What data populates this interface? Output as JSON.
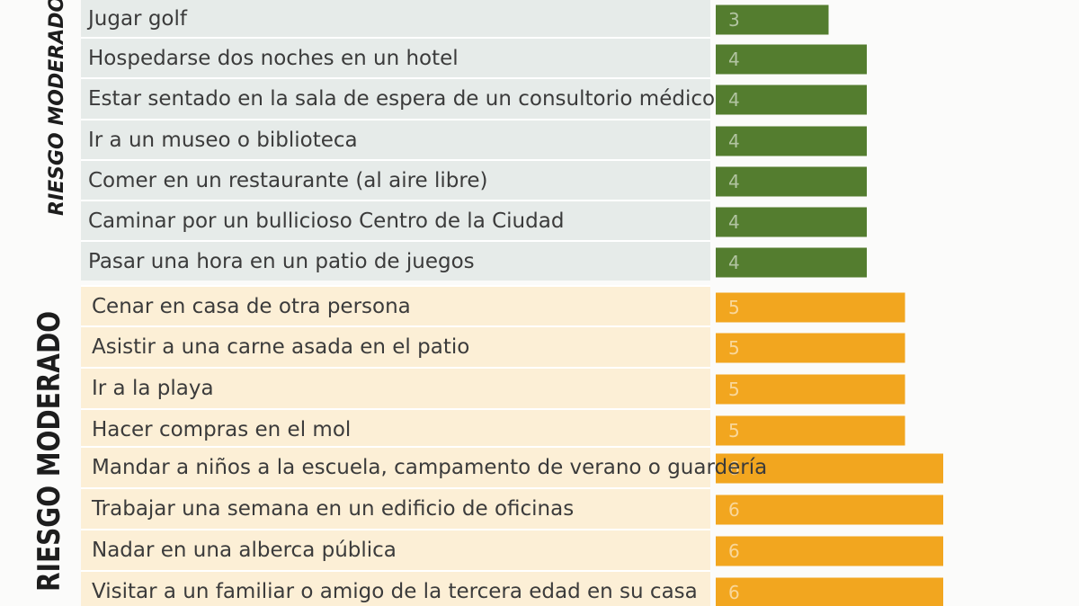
{
  "chart_data": {
    "type": "bar",
    "orientation": "horizontal",
    "grid": false,
    "sections": [
      {
        "label": "RIESGO MODERADO-BA",
        "color": "#547d2f",
        "background": "#e6ebe9",
        "label_style": "italic"
      },
      {
        "label": "RIESGO MODERADO",
        "color": "#f2a61f",
        "background": "#fcefd6",
        "label_style": "bold"
      }
    ],
    "items": [
      {
        "activity": "Jugar golf",
        "value": 3,
        "section": 0
      },
      {
        "activity": "Hospedarse dos noches en un hotel",
        "value": 4,
        "section": 0
      },
      {
        "activity": "Estar sentado en la sala de espera de un consultorio médico",
        "value": 4,
        "section": 0
      },
      {
        "activity": "Ir a un museo o biblioteca",
        "value": 4,
        "section": 0
      },
      {
        "activity": "Comer en un restaurante (al aire libre)",
        "value": 4,
        "section": 0
      },
      {
        "activity": "Caminar por un bullicioso Centro de la Ciudad",
        "value": 4,
        "section": 0
      },
      {
        "activity": "Pasar una hora en un patio de juegos",
        "value": 4,
        "section": 0
      },
      {
        "activity": "Cenar en casa de otra persona",
        "value": 5,
        "section": 1
      },
      {
        "activity": "Asistir a una carne asada en el patio",
        "value": 5,
        "section": 1
      },
      {
        "activity": "Ir a la playa",
        "value": 5,
        "section": 1
      },
      {
        "activity": "Hacer compras en el mol",
        "value": 5,
        "section": 1
      },
      {
        "activity": "Mandar a niños a la escuela, campamento de verano o guardería",
        "value": 6,
        "section": 1
      },
      {
        "activity": "Trabajar una semana en un edificio de oficinas",
        "value": 6,
        "section": 1
      },
      {
        "activity": "Nadar en una alberca pública",
        "value": 6,
        "section": 1
      },
      {
        "activity": "Visitar a un familiar o amigo de la tercera edad en su casa",
        "value": 6,
        "section": 1
      }
    ]
  }
}
